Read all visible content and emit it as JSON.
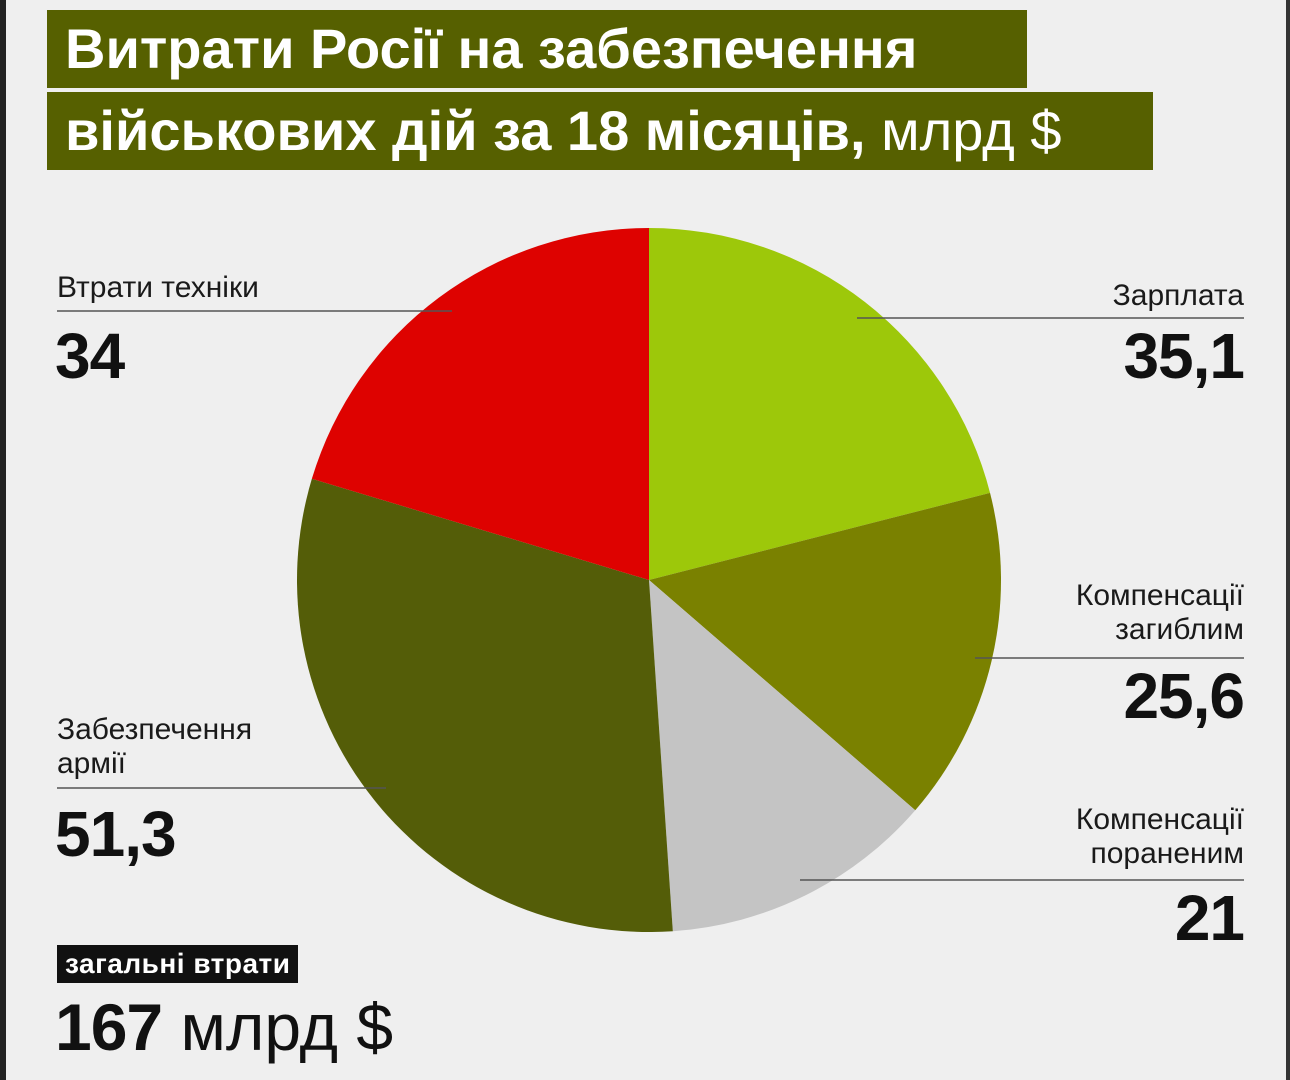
{
  "title": {
    "line1": "Витрати Росії на забезпечення",
    "line2": "військових дій за 18 місяців,",
    "unit": "млрд $"
  },
  "chart_data": {
    "type": "pie",
    "title": "Витрати Росії на забезпечення військових дій за 18 місяців, млрд $",
    "slices": [
      {
        "label": "Зарплата",
        "value": 35.1,
        "display": "35,1",
        "color": "#9dc80a"
      },
      {
        "label": "Компенсації загиблим",
        "value": 25.6,
        "display": "25,6",
        "color": "#7a8100"
      },
      {
        "label": "Компенсації пораненим",
        "value": 21,
        "display": "21",
        "color": "#c4c4c4"
      },
      {
        "label": "Забезпечення армії",
        "value": 51.3,
        "display": "51,3",
        "color": "#545d08"
      },
      {
        "label": "Втрати техніки",
        "value": 34,
        "display": "34",
        "color": "#de0200"
      }
    ]
  },
  "labels": {
    "salary": {
      "line1": "Зарплата",
      "value": "35,1"
    },
    "killed": {
      "line1": "Компенсації",
      "line2": "загиблим",
      "value": "25,6"
    },
    "wounded": {
      "line1": "Компенсації",
      "line2": "пораненим",
      "value": "21"
    },
    "army": {
      "line1": "Забезпечення",
      "line2": "армії",
      "value": "51,3"
    },
    "equipment": {
      "line1": "Втрати техніки",
      "value": "34"
    }
  },
  "total": {
    "label": "загальні втрати",
    "value": "167",
    "unit": "млрд $"
  }
}
